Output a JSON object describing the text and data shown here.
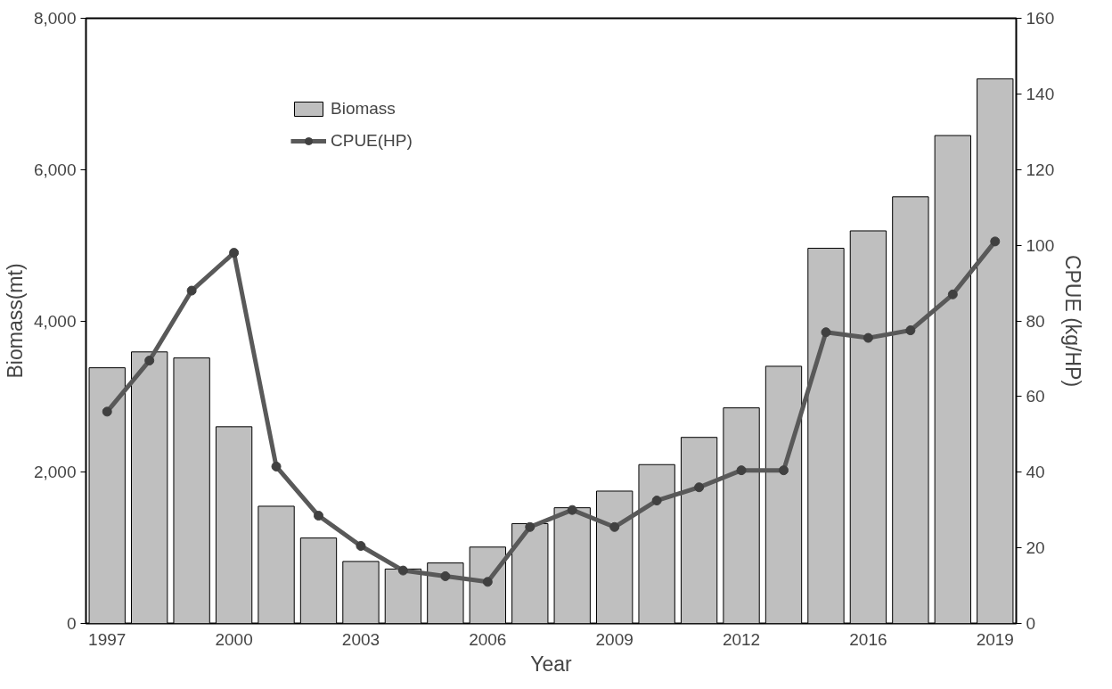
{
  "chart_data": {
    "type": "bar",
    "xlabel": "Year",
    "ylabel": "Biomass(mt)",
    "y2label": "CPUE (kg/HP)",
    "categories": [
      "1997",
      null,
      null,
      "2000",
      null,
      null,
      "2003",
      null,
      null,
      "2006",
      null,
      null,
      "2009",
      null,
      null,
      "2012",
      null,
      null,
      "2016",
      null,
      null,
      "2019"
    ],
    "series": [
      {
        "name": "Biomass",
        "color": "#bfbfbf",
        "values": [
          3380,
          3590,
          3510,
          2600,
          1550,
          1130,
          820,
          720,
          800,
          1010,
          1320,
          1530,
          1750,
          2100,
          2460,
          2850,
          3400,
          4960,
          5190,
          5640,
          6450,
          7200
        ]
      },
      {
        "name": "CPUE(HP)",
        "type": "line",
        "axis": "y2",
        "color": "#595959",
        "values": [
          56,
          69.5,
          88,
          98,
          41.5,
          28.5,
          20.5,
          14,
          12.5,
          11,
          25.5,
          30,
          25.5,
          32.5,
          36,
          40.5,
          40.5,
          77,
          75.5,
          77.5,
          87,
          101
        ]
      }
    ],
    "ylim": [
      0,
      8000
    ],
    "yticks": [
      0,
      {
        "value": 2000,
        "label": "2,000"
      },
      {
        "value": 4000,
        "label": "4,000"
      },
      {
        "value": 6000,
        "label": "6,000"
      },
      {
        "value": 8000,
        "label": "8,000"
      }
    ],
    "y2lim": [
      0,
      160
    ],
    "y2ticks": [
      0,
      20,
      40,
      60,
      80,
      100,
      120,
      140,
      160
    ],
    "grid": false,
    "legend": "top left",
    "marker": "circle",
    "line_style": "solid"
  }
}
